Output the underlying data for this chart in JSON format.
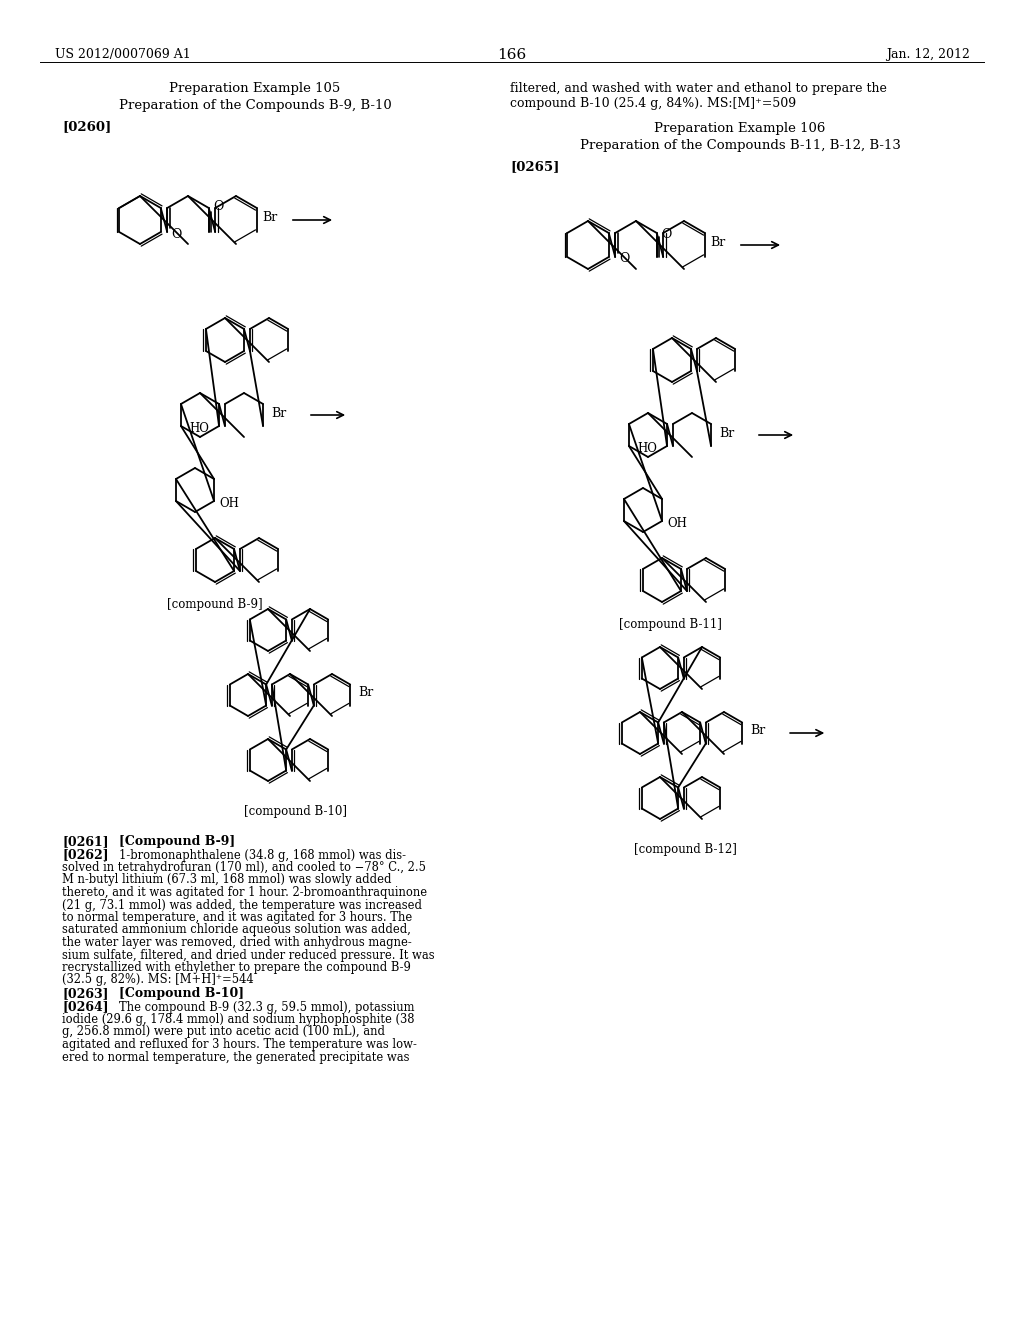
{
  "page_number": "166",
  "patent_number": "US 2012/0007069 A1",
  "patent_date": "Jan. 12, 2012",
  "background_color": "#ffffff",
  "left_title1": "Preparation Example 105",
  "left_title2": "Preparation of the Compounds B-9, B-10",
  "left_tag": "[0260]",
  "compound_b9_label": "[compound B-9]",
  "compound_b10_label": "[compound B-10]",
  "right_text1": "filtered, and washed with water and ethanol to prepare the",
  "right_text2": "compound B-10 (25.4 g, 84%). MS:[M]⁺=509",
  "right_title1": "Preparation Example 106",
  "right_title2": "Preparation of the Compounds B-11, B-12, B-13",
  "right_tag": "[0265]",
  "compound_b11_label": "[compound B-11]",
  "compound_b12_label": "[compound B-12]",
  "p0261_label": "[0261]",
  "p0261_text": "[Compound B-9]",
  "p0262_label": "[0262]",
  "p0262_text": "1-bromonaphthalene (34.8 g, 168 mmol) was dis-solved in tetrahydrofuran (170 ml), and cooled to −78° C., 2.5 M n-butyl lithium (67.3 ml, 168 mmol) was slowly added thereto, and it was agitated for 1 hour. 2-bromoanthraquinone (21 g, 73.1 mmol) was added, the temperature was increased to normal temperature, and it was agitated for 3 hours. The saturated ammonium chloride aqueous solution was added, the water layer was removed, dried with anhydrous magnesium sulfate, filtered, and dried under reduced pressure. It was recrystallized with ethylether to prepare the compound B-9 (32.5 g, 82%). MS: [M+H]⁺=544",
  "p0263_label": "[0263]",
  "p0263_text": "[Compound B-10]",
  "p0264_label": "[0264]",
  "p0264_text": "The compound B-9 (32.3 g, 59.5 mmol), potassium iodide (29.6 g, 178.4 mmol) and sodium hyphophosphite (38 g, 256.8 mmol) were put into acetic acid (100 mL), and agitated and refluxed for 3 hours. The temperature was low-ered to normal temperature, the generated precipitate was"
}
